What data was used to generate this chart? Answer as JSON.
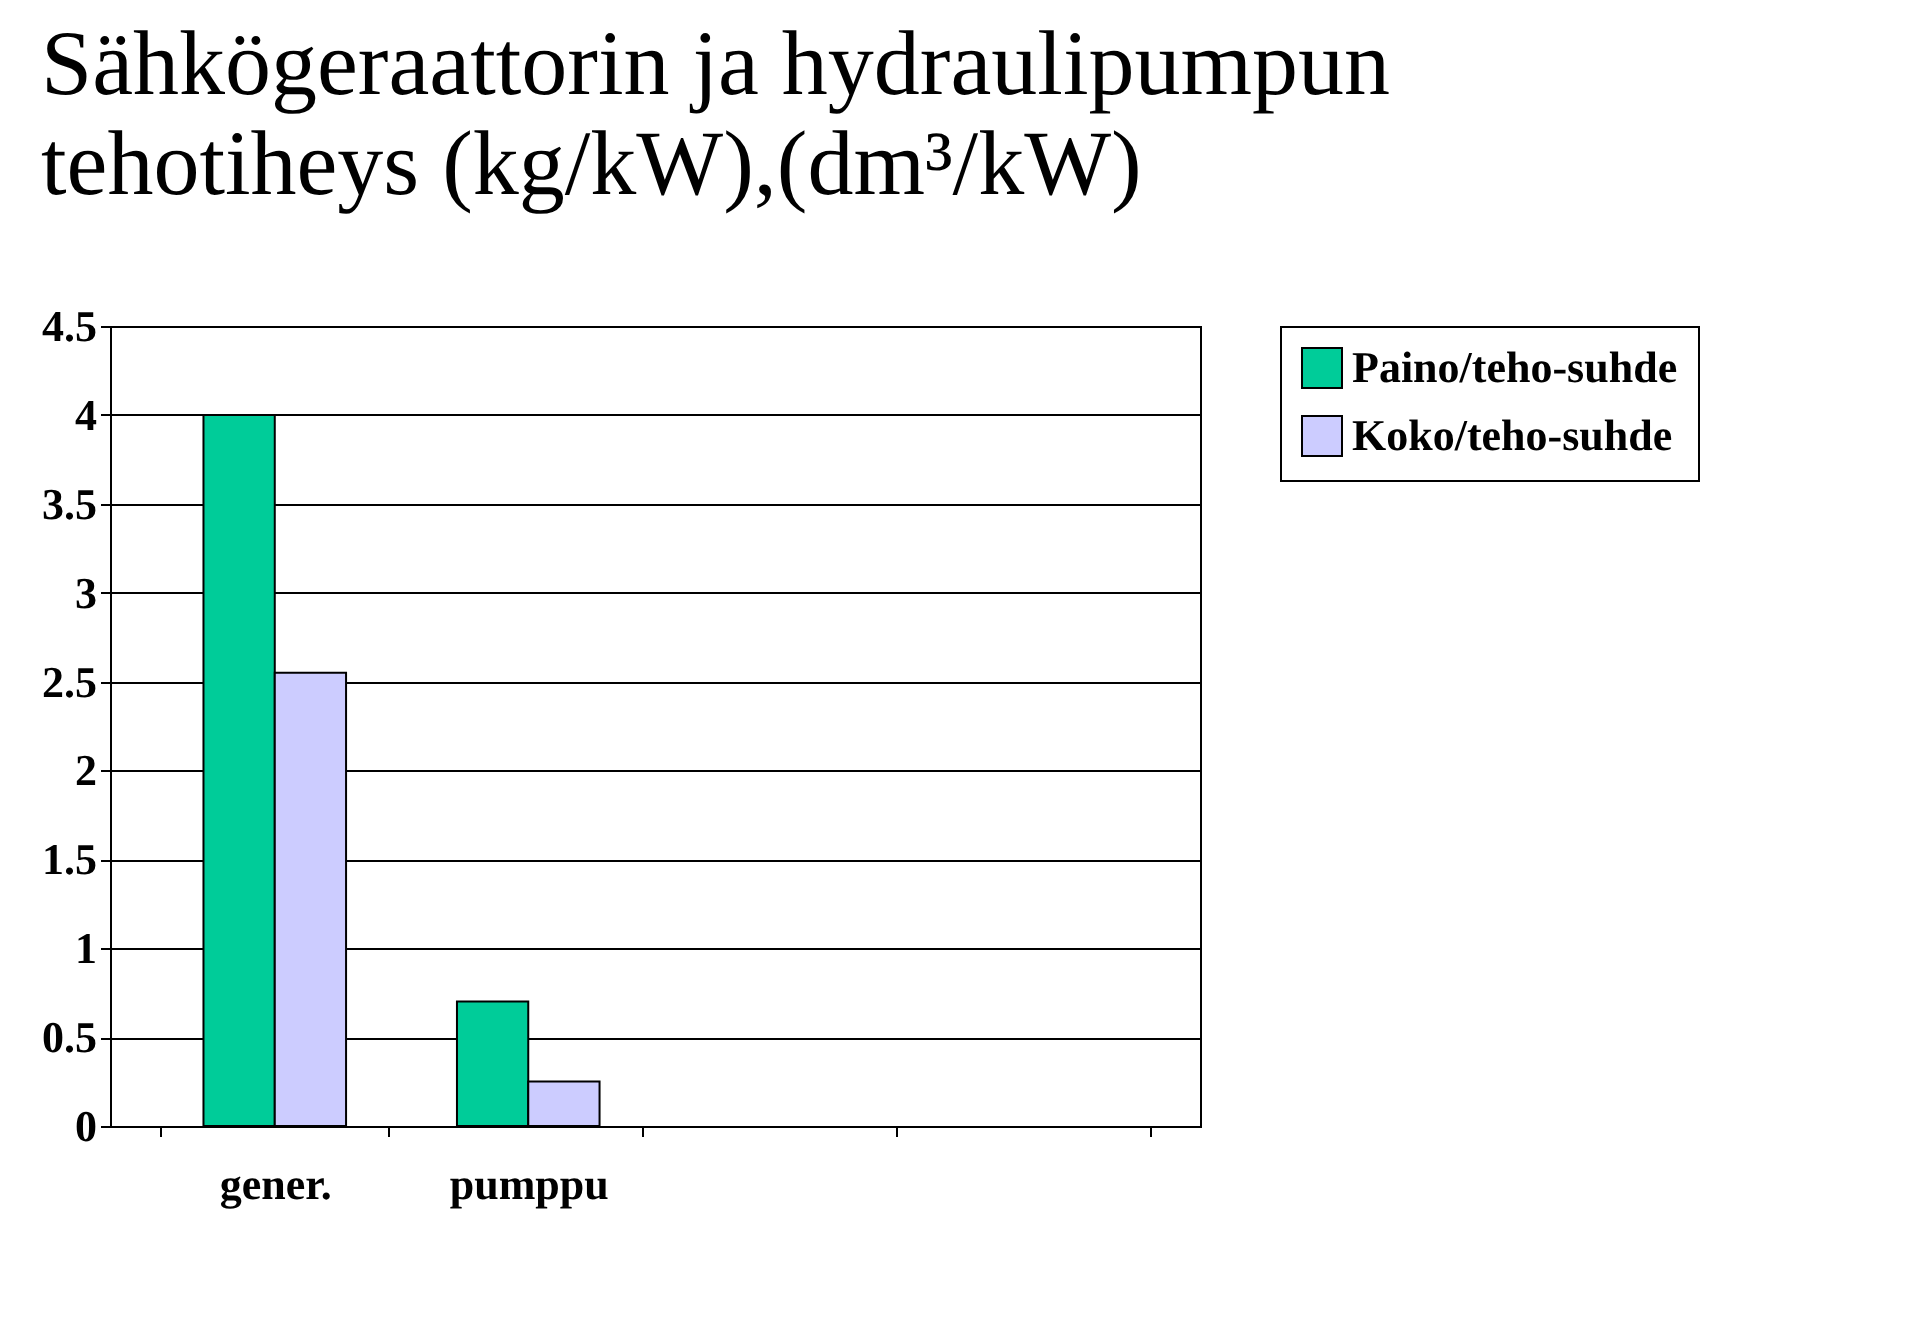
{
  "chart_data": {
    "type": "bar",
    "title": "Sähkögeraattorin ja hydraulipumpun tehotiheys (kg/kW),(dm³/kW)",
    "categories": [
      "gener.",
      "pumppu",
      null,
      null
    ],
    "series": [
      {
        "name": "Paino/teho-suhde",
        "color": "#00cc99",
        "values": [
          4.0,
          0.7,
          null,
          null
        ]
      },
      {
        "name": "Koko/teho-suhde",
        "color": "#ccccff",
        "values": [
          2.55,
          0.25,
          null,
          null
        ]
      }
    ],
    "ylim": [
      0,
      4.5
    ],
    "yticks": [
      0,
      0.5,
      1,
      1.5,
      2,
      2.5,
      3,
      3.5,
      4,
      4.5
    ],
    "grid": "y",
    "legend": "right"
  }
}
